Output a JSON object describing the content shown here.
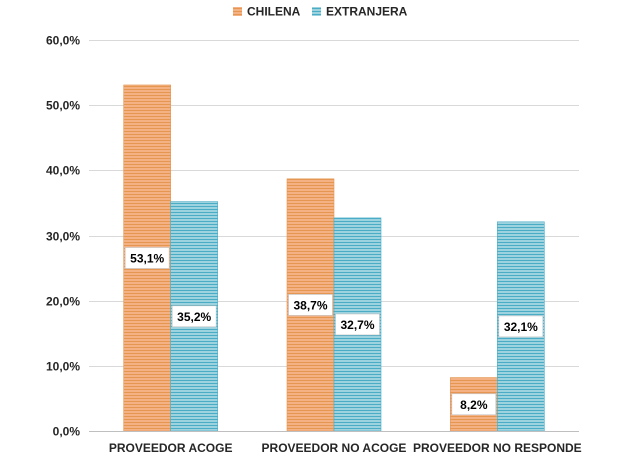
{
  "chart_data": {
    "type": "bar",
    "categories": [
      "PROVEEDOR ACOGE",
      "PROVEEDOR NO ACOGE",
      "PROVEEDOR NO RESPONDE"
    ],
    "series": [
      {
        "name": "CHILENA",
        "values": [
          53.1,
          38.7,
          8.2
        ],
        "labels": [
          "53,1%",
          "38,7%",
          "8,2%"
        ],
        "color": "#F4B183",
        "stripe": "#E59752"
      },
      {
        "name": "EXTRANJERA",
        "values": [
          35.2,
          32.7,
          32.1
        ],
        "labels": [
          "35,2%",
          "32,7%",
          "32,1%"
        ],
        "color": "#9DD3DF",
        "stripe": "#4BACC6"
      }
    ],
    "yticks": [
      0,
      10,
      20,
      30,
      40,
      50,
      60
    ],
    "ytick_labels": [
      "0,0%",
      "10,0%",
      "20,0%",
      "30,0%",
      "40,0%",
      "50,0%",
      "60,0%"
    ],
    "ylim": [
      0,
      60
    ],
    "grid": true,
    "legend_position": "top-center"
  }
}
